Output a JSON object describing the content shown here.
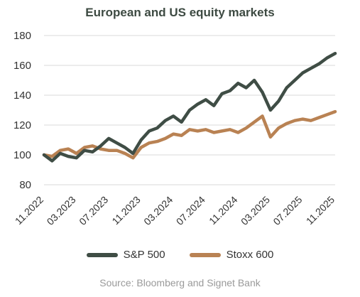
{
  "chart_data": {
    "type": "line",
    "title": "European and US equity markets",
    "xlabel": "",
    "ylabel": "",
    "ylim": [
      80,
      180
    ],
    "yticks": [
      80,
      100,
      120,
      140,
      160,
      180
    ],
    "x_start": "2022-11",
    "x_end": "2025-11",
    "xticks": [
      "11.2022",
      "03.2023",
      "07.2023",
      "11.2023",
      "03.2024",
      "07.2024",
      "11.2024",
      "03.2025",
      "07.2025",
      "11.2025"
    ],
    "grid": "horizontal",
    "legend_position": "bottom",
    "x": [
      "2022-11",
      "2022-12",
      "2023-01",
      "2023-02",
      "2023-03",
      "2023-04",
      "2023-05",
      "2023-06",
      "2023-07",
      "2023-08",
      "2023-09",
      "2023-10",
      "2023-11",
      "2023-12",
      "2024-01",
      "2024-02",
      "2024-03",
      "2024-04",
      "2024-05",
      "2024-06",
      "2024-07",
      "2024-08",
      "2024-09",
      "2024-10",
      "2024-11",
      "2024-12",
      "2025-01",
      "2025-02",
      "2025-03",
      "2025-04",
      "2025-05",
      "2025-06",
      "2025-07",
      "2025-08",
      "2025-09",
      "2025-10",
      "2025-11"
    ],
    "series": [
      {
        "name": "S&P 500",
        "color": "#3f4d45",
        "values": [
          100,
          96,
          101,
          99,
          98,
          103,
          102,
          106,
          111,
          108,
          105,
          101,
          110,
          116,
          118,
          123,
          126,
          122,
          130,
          134,
          137,
          133,
          141,
          143,
          148,
          145,
          150,
          142,
          130,
          136,
          145,
          150,
          155,
          158,
          161,
          165,
          168
        ]
      },
      {
        "name": "Stoxx 600",
        "color": "#b98253",
        "values": [
          100,
          99,
          103,
          104,
          101,
          105,
          106,
          104,
          103,
          103,
          101,
          98,
          105,
          108,
          109,
          111,
          114,
          113,
          117,
          116,
          117,
          115,
          116,
          117,
          115,
          118,
          122,
          126,
          112,
          118,
          121,
          123,
          124,
          123,
          125,
          127,
          129
        ]
      }
    ]
  },
  "source": "Source: Bloomberg and Signet Bank"
}
